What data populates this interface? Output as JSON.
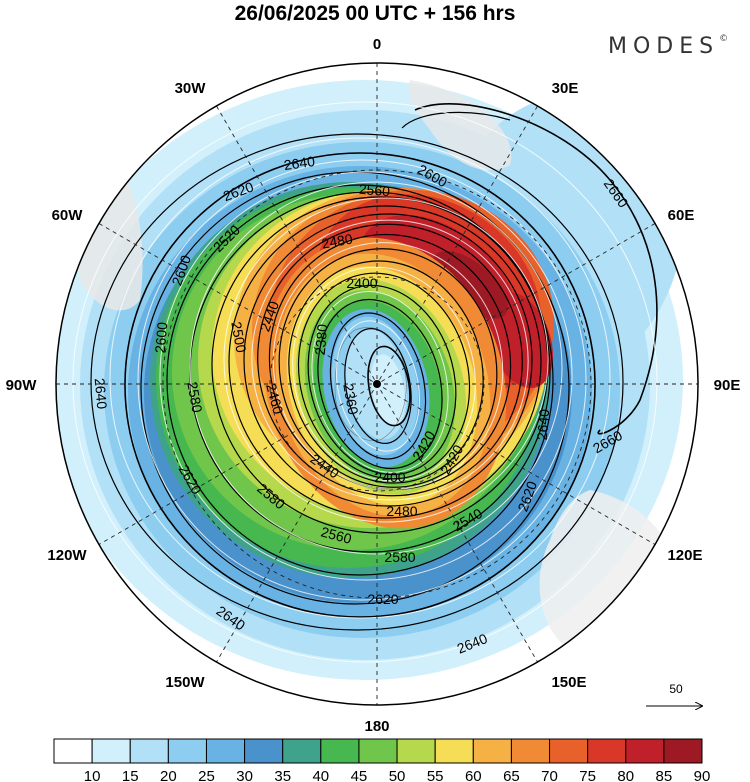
{
  "header": {
    "title": "26/06/2025  00 UTC  + 156 hrs",
    "brand": "MODES",
    "brand_mark": "©"
  },
  "map": {
    "projection": "south-polar-stereographic",
    "longitude_labels": [
      "0",
      "30E",
      "60E",
      "90E",
      "120E",
      "150E",
      "180",
      "150W",
      "120W",
      "90W",
      "60W",
      "30W"
    ],
    "contour_labels": [
      "2660",
      "2660",
      "2660",
      "2640",
      "2640",
      "2640",
      "2640",
      "2640",
      "2620",
      "2620",
      "2620",
      "2620",
      "2600",
      "2600",
      "2600",
      "2580",
      "2580",
      "2580",
      "2560",
      "2560",
      "2540",
      "2520",
      "2500",
      "2480",
      "2480",
      "2460",
      "2440",
      "2440",
      "2420",
      "2420",
      "2400",
      "2400",
      "2380",
      "2360"
    ],
    "vector_scale_label": "50"
  },
  "colorbar": {
    "ticks": [
      "10",
      "15",
      "20",
      "25",
      "30",
      "35",
      "40",
      "45",
      "50",
      "55",
      "60",
      "65",
      "70",
      "75",
      "80",
      "85",
      "90"
    ],
    "colors": [
      "#ffffff",
      "#d2f0fb",
      "#b2e1f7",
      "#8dcdf0",
      "#68b3e3",
      "#4a92cc",
      "#3fa28b",
      "#47b74f",
      "#6fc64a",
      "#b5d84c",
      "#f5de55",
      "#f6b144",
      "#f08a34",
      "#e8602a",
      "#d93727",
      "#c0202a",
      "#9d1a24"
    ]
  }
}
